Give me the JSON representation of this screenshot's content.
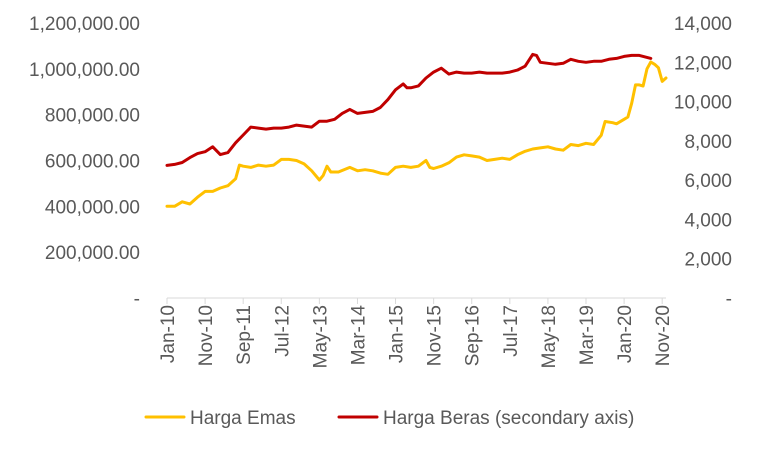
{
  "chart_data": {
    "type": "line",
    "title": "",
    "x_ticks": [
      "Jan-10",
      "Nov-10",
      "Sep-11",
      "Jul-12",
      "May-13",
      "Mar-14",
      "Jan-15",
      "Nov-15",
      "Sep-16",
      "Jul-17",
      "May-18",
      "Mar-19",
      "Jan-20",
      "Nov-20"
    ],
    "x_range": [
      "Jan-10",
      "Dec-20"
    ],
    "y_left": {
      "ylim": [
        0,
        1200000
      ],
      "ticks": [
        0,
        200000,
        400000,
        600000,
        800000,
        1000000,
        1200000
      ],
      "tick_labels": [
        "-",
        "200,000.00",
        "400,000.00",
        "600,000.00",
        "800,000.00",
        "1,000,000.00",
        "1,200,000.00"
      ]
    },
    "y_right": {
      "ylim": [
        0,
        14000
      ],
      "ticks": [
        0,
        2000,
        4000,
        6000,
        8000,
        10000,
        12000,
        14000
      ],
      "tick_labels": [
        "-",
        "2,000",
        "4,000",
        "6,000",
        "8,000",
        "10,000",
        "12,000",
        "14,000"
      ]
    },
    "grid": false,
    "legend_position": "bottom",
    "series": [
      {
        "name": "Harga Emas",
        "axis": "left",
        "color": "#FFC000",
        "points": [
          [
            "Jan-10",
            400000
          ],
          [
            "Mar-10",
            400000
          ],
          [
            "May-10",
            420000
          ],
          [
            "Jul-10",
            410000
          ],
          [
            "Sep-10",
            440000
          ],
          [
            "Nov-10",
            465000
          ],
          [
            "Jan-11",
            465000
          ],
          [
            "Mar-11",
            480000
          ],
          [
            "May-11",
            490000
          ],
          [
            "Jul-11",
            520000
          ],
          [
            "Aug-11",
            580000
          ],
          [
            "Sep-11",
            575000
          ],
          [
            "Nov-11",
            570000
          ],
          [
            "Jan-12",
            580000
          ],
          [
            "Mar-12",
            575000
          ],
          [
            "May-12",
            580000
          ],
          [
            "Jul-12",
            605000
          ],
          [
            "Sep-12",
            605000
          ],
          [
            "Nov-12",
            600000
          ],
          [
            "Jan-13",
            585000
          ],
          [
            "Mar-13",
            555000
          ],
          [
            "May-13",
            515000
          ],
          [
            "Jun-13",
            535000
          ],
          [
            "Jul-13",
            575000
          ],
          [
            "Aug-13",
            550000
          ],
          [
            "Oct-13",
            550000
          ],
          [
            "Jan-14",
            570000
          ],
          [
            "Mar-14",
            555000
          ],
          [
            "May-14",
            560000
          ],
          [
            "Jul-14",
            555000
          ],
          [
            "Sep-14",
            545000
          ],
          [
            "Nov-14",
            540000
          ],
          [
            "Jan-15",
            570000
          ],
          [
            "Mar-15",
            575000
          ],
          [
            "May-15",
            570000
          ],
          [
            "Jul-15",
            575000
          ],
          [
            "Sep-15",
            600000
          ],
          [
            "Oct-15",
            570000
          ],
          [
            "Nov-15",
            565000
          ],
          [
            "Jan-16",
            575000
          ],
          [
            "Mar-16",
            590000
          ],
          [
            "May-16",
            615000
          ],
          [
            "Jul-16",
            625000
          ],
          [
            "Sep-16",
            620000
          ],
          [
            "Nov-16",
            615000
          ],
          [
            "Jan-17",
            600000
          ],
          [
            "Mar-17",
            605000
          ],
          [
            "May-17",
            610000
          ],
          [
            "Jul-17",
            605000
          ],
          [
            "Sep-17",
            625000
          ],
          [
            "Nov-17",
            640000
          ],
          [
            "Jan-18",
            650000
          ],
          [
            "Mar-18",
            655000
          ],
          [
            "May-18",
            660000
          ],
          [
            "Jul-18",
            650000
          ],
          [
            "Sep-18",
            645000
          ],
          [
            "Nov-18",
            670000
          ],
          [
            "Jan-19",
            665000
          ],
          [
            "Mar-19",
            675000
          ],
          [
            "May-19",
            670000
          ],
          [
            "Jul-19",
            710000
          ],
          [
            "Aug-19",
            770000
          ],
          [
            "Oct-19",
            765000
          ],
          [
            "Nov-19",
            760000
          ],
          [
            "Jan-20",
            780000
          ],
          [
            "Feb-20",
            790000
          ],
          [
            "Mar-20",
            850000
          ],
          [
            "Apr-20",
            930000
          ],
          [
            "May-20",
            930000
          ],
          [
            "Jun-20",
            925000
          ],
          [
            "Jul-20",
            1000000
          ],
          [
            "Aug-20",
            1030000
          ],
          [
            "Sep-20",
            1020000
          ],
          [
            "Oct-20",
            1005000
          ],
          [
            "Nov-20",
            945000
          ],
          [
            "Dec-20",
            960000
          ]
        ]
      },
      {
        "name": "Harga Beras (secondary axis)",
        "axis": "right",
        "color": "#C00000",
        "points": [
          [
            "Jan-10",
            6750
          ],
          [
            "Mar-10",
            6800
          ],
          [
            "May-10",
            6900
          ],
          [
            "Jul-10",
            7150
          ],
          [
            "Sep-10",
            7350
          ],
          [
            "Nov-10",
            7450
          ],
          [
            "Jan-11",
            7700
          ],
          [
            "Mar-11",
            7300
          ],
          [
            "May-11",
            7400
          ],
          [
            "Jul-11",
            7900
          ],
          [
            "Sep-11",
            8300
          ],
          [
            "Nov-11",
            8700
          ],
          [
            "Jan-12",
            8650
          ],
          [
            "Mar-12",
            8600
          ],
          [
            "May-12",
            8650
          ],
          [
            "Jul-12",
            8650
          ],
          [
            "Sep-12",
            8700
          ],
          [
            "Nov-12",
            8800
          ],
          [
            "Jan-13",
            8750
          ],
          [
            "Mar-13",
            8700
          ],
          [
            "May-13",
            9000
          ],
          [
            "Jul-13",
            9000
          ],
          [
            "Sep-13",
            9100
          ],
          [
            "Nov-13",
            9400
          ],
          [
            "Jan-14",
            9600
          ],
          [
            "Mar-14",
            9400
          ],
          [
            "May-14",
            9450
          ],
          [
            "Jul-14",
            9500
          ],
          [
            "Sep-14",
            9700
          ],
          [
            "Nov-14",
            10100
          ],
          [
            "Jan-15",
            10600
          ],
          [
            "Mar-15",
            10900
          ],
          [
            "Apr-15",
            10700
          ],
          [
            "May-15",
            10700
          ],
          [
            "Jul-15",
            10800
          ],
          [
            "Sep-15",
            11200
          ],
          [
            "Nov-15",
            11500
          ],
          [
            "Jan-16",
            11700
          ],
          [
            "Mar-16",
            11400
          ],
          [
            "May-16",
            11500
          ],
          [
            "Jul-16",
            11450
          ],
          [
            "Sep-16",
            11450
          ],
          [
            "Nov-16",
            11500
          ],
          [
            "Jan-17",
            11450
          ],
          [
            "Mar-17",
            11450
          ],
          [
            "May-17",
            11450
          ],
          [
            "Jul-17",
            11500
          ],
          [
            "Sep-17",
            11600
          ],
          [
            "Nov-17",
            11800
          ],
          [
            "Jan-18",
            12400
          ],
          [
            "Feb-18",
            12350
          ],
          [
            "Mar-18",
            12000
          ],
          [
            "May-18",
            11950
          ],
          [
            "Jul-18",
            11900
          ],
          [
            "Sep-18",
            11950
          ],
          [
            "Nov-18",
            12150
          ],
          [
            "Jan-19",
            12050
          ],
          [
            "Mar-19",
            12000
          ],
          [
            "May-19",
            12050
          ],
          [
            "Jul-19",
            12050
          ],
          [
            "Sep-19",
            12150
          ],
          [
            "Nov-19",
            12200
          ],
          [
            "Jan-20",
            12300
          ],
          [
            "Mar-20",
            12350
          ],
          [
            "May-20",
            12350
          ],
          [
            "Jul-20",
            12250
          ],
          [
            "Aug-20",
            12200
          ]
        ]
      }
    ]
  }
}
